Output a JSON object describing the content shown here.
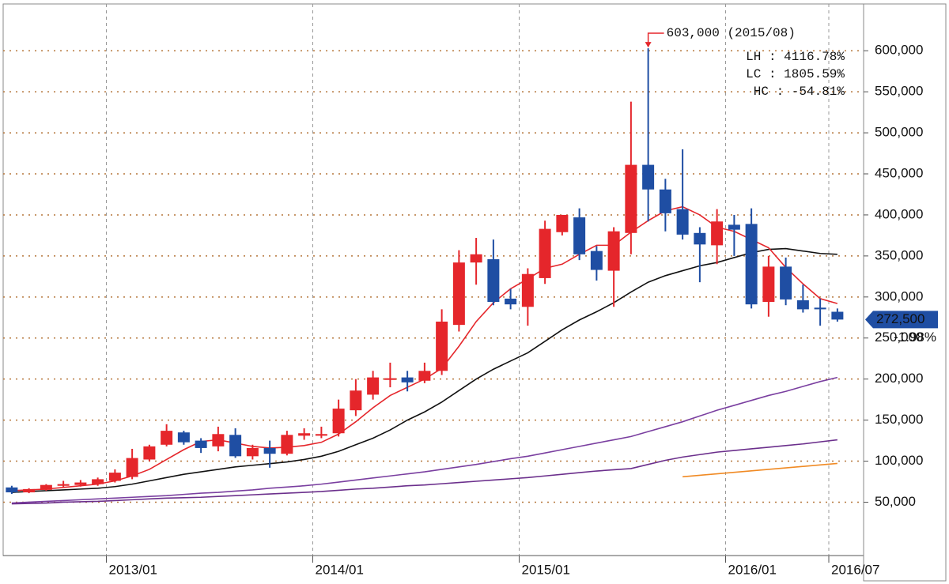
{
  "chart_data": {
    "type": "candlestick",
    "categories": [
      null,
      null,
      null,
      null,
      null,
      null,
      "2013/01",
      null,
      null,
      null,
      null,
      null,
      null,
      null,
      null,
      null,
      null,
      null,
      "2014/01",
      null,
      null,
      null,
      null,
      null,
      null,
      null,
      null,
      null,
      null,
      null,
      "2015/01",
      null,
      null,
      null,
      null,
      null,
      null,
      null,
      null,
      null,
      null,
      null,
      "2016/01",
      null,
      null,
      null,
      null,
      null,
      "2016/07"
    ],
    "open": [
      68000,
      62000,
      65000,
      70000,
      71000,
      72000,
      76000,
      80800,
      102000,
      120000,
      135000,
      125000,
      118000,
      132000,
      106000,
      116000,
      109000,
      131000,
      131000,
      134000,
      162000,
      181000,
      199000,
      202000,
      198000,
      210000,
      266000,
      342000,
      346000,
      298000,
      288000,
      323000,
      379000,
      397000,
      356000,
      332000,
      378000,
      461000,
      431000,
      407000,
      378000,
      363000,
      388000,
      389000,
      294000,
      337000,
      296000,
      287000,
      282000
    ],
    "high": [
      70000,
      67000,
      72000,
      76000,
      77000,
      80000,
      90000,
      115000,
      120000,
      145000,
      137000,
      128000,
      142000,
      140000,
      120000,
      125000,
      137000,
      140000,
      142000,
      175000,
      200000,
      210000,
      220000,
      210000,
      220000,
      285000,
      357000,
      372000,
      370000,
      310000,
      335000,
      393000,
      400000,
      408000,
      362000,
      385000,
      538000,
      603000,
      444000,
      480000,
      385000,
      407000,
      400000,
      408000,
      350000,
      348000,
      315000,
      298000,
      286000
    ],
    "low": [
      60000,
      61000,
      64000,
      68000,
      69000,
      70000,
      74000,
      78000,
      100000,
      118000,
      120000,
      110000,
      112000,
      104000,
      102000,
      92000,
      107000,
      126000,
      128000,
      130000,
      155000,
      175000,
      190000,
      185000,
      195000,
      205000,
      258000,
      315000,
      290000,
      285000,
      265000,
      316000,
      375000,
      345000,
      320000,
      288000,
      352000,
      392000,
      380000,
      370000,
      318000,
      340000,
      350000,
      286000,
      276000,
      290000,
      281000,
      265000,
      270000
    ],
    "close": [
      62000,
      66000,
      71000,
      72000,
      74000,
      78000,
      86000,
      103800,
      118000,
      137000,
      123000,
      116000,
      133000,
      106000,
      116000,
      109000,
      132000,
      134000,
      133000,
      164000,
      186000,
      202000,
      201000,
      196000,
      210000,
      270000,
      342000,
      352000,
      294000,
      291000,
      328000,
      383000,
      400000,
      352000,
      333000,
      380000,
      461000,
      431000,
      402000,
      376000,
      364000,
      392000,
      382000,
      291000,
      337000,
      297000,
      285000,
      285000,
      272500
    ],
    "up_color": "#e5262b",
    "down_color": "#1f4ea3",
    "overlays": [
      {
        "color": "#7a3fa0",
        "values": [
          49000,
          50000,
          51000,
          52000,
          53000,
          54000,
          55000,
          56000,
          57000,
          58000,
          59500,
          61000,
          62000,
          63500,
          65000,
          67000,
          68500,
          70000,
          72000,
          74500,
          77000,
          79500,
          82000,
          84500,
          87000,
          90000,
          93000,
          96000,
          99500,
          103000,
          106000,
          110000,
          114000,
          118000,
          122000,
          126000,
          130000,
          136000,
          142000,
          148000,
          155000,
          162000,
          168000,
          174000,
          180000,
          185000,
          191000,
          197000,
          202000
        ]
      },
      {
        "color": "#6b2f8c",
        "values": [
          48000,
          48500,
          49000,
          50000,
          50500,
          51000,
          52000,
          53000,
          54000,
          55000,
          55500,
          56000,
          57000,
          58000,
          59000,
          60000,
          61000,
          62000,
          63000,
          64500,
          66000,
          67000,
          68500,
          70000,
          71000,
          72500,
          74000,
          75500,
          77000,
          78500,
          80000,
          82000,
          84000,
          86000,
          88000,
          89500,
          91000,
          96000,
          101000,
          105000,
          108000,
          111000,
          113000,
          115000,
          117000,
          119000,
          121000,
          123500,
          126000
        ]
      },
      {
        "color": "#f08a24",
        "values": [
          null,
          null,
          null,
          null,
          null,
          null,
          null,
          null,
          null,
          null,
          null,
          null,
          null,
          null,
          null,
          null,
          null,
          null,
          null,
          null,
          null,
          null,
          null,
          null,
          null,
          null,
          null,
          null,
          null,
          null,
          null,
          null,
          null,
          null,
          null,
          null,
          null,
          null,
          null,
          81000,
          82800,
          84600,
          86400,
          88200,
          90000,
          91800,
          93600,
          95400,
          97200
        ]
      },
      {
        "color": "#111111",
        "values": [
          62000,
          63000,
          64000,
          65000,
          66000,
          67000,
          69000,
          72000,
          76000,
          80000,
          84000,
          87000,
          90000,
          93000,
          95000,
          97000,
          99000,
          102000,
          106000,
          112000,
          120000,
          128000,
          138000,
          150000,
          160000,
          172000,
          186000,
          200000,
          212000,
          222000,
          232000,
          246000,
          260000,
          272000,
          282000,
          293000,
          306000,
          318000,
          326000,
          332000,
          338000,
          342000,
          348000,
          354000,
          358000,
          359000,
          356000,
          353000,
          352000
        ]
      },
      {
        "color": "#e5262b",
        "values": [
          64000,
          65000,
          66000,
          68000,
          70000,
          72000,
          76000,
          82000,
          90000,
          102000,
          114000,
          124000,
          126000,
          122000,
          118000,
          116000,
          117000,
          119000,
          123000,
          133000,
          148000,
          165000,
          180000,
          190000,
          200000,
          213000,
          240000,
          270000,
          293000,
          310000,
          322000,
          335000,
          340000,
          352000,
          363000,
          363000,
          379000,
          393000,
          405000,
          410000,
          400000,
          385000,
          380000,
          370000,
          360000,
          336000,
          316000,
          298000,
          292000
        ]
      }
    ],
    "ylim": [
      -15000,
      657000
    ],
    "yticks": [
      {
        "value": 50000,
        "label": "50,000"
      },
      {
        "value": 100000,
        "label": "100,000"
      },
      {
        "value": 150000,
        "label": "150,000"
      },
      {
        "value": 200000,
        "label": "200,000"
      },
      {
        "value": 250000,
        "label": "250,000"
      },
      {
        "value": 300000,
        "label": "300,000"
      },
      {
        "value": 350000,
        "label": "350,000"
      },
      {
        "value": 400000,
        "label": "400,000"
      },
      {
        "value": 450000,
        "label": "450,000"
      },
      {
        "value": 500000,
        "label": "500,000"
      },
      {
        "value": 550000,
        "label": "550,000"
      },
      {
        "value": 600000,
        "label": "600,000"
      }
    ],
    "grid": true,
    "peak_label": "603,000 (2015/08)",
    "stats": [
      {
        "text": "LH : 4116.78%",
        "color": "#2e8b2e"
      },
      {
        "text": "LC : 1805.59%",
        "color": "#e5262b"
      },
      {
        "text": "HC : -54.81%",
        "color": "#1f4ea3"
      }
    ],
    "last_price_label": "272,500",
    "change_label": "-1.98%"
  }
}
